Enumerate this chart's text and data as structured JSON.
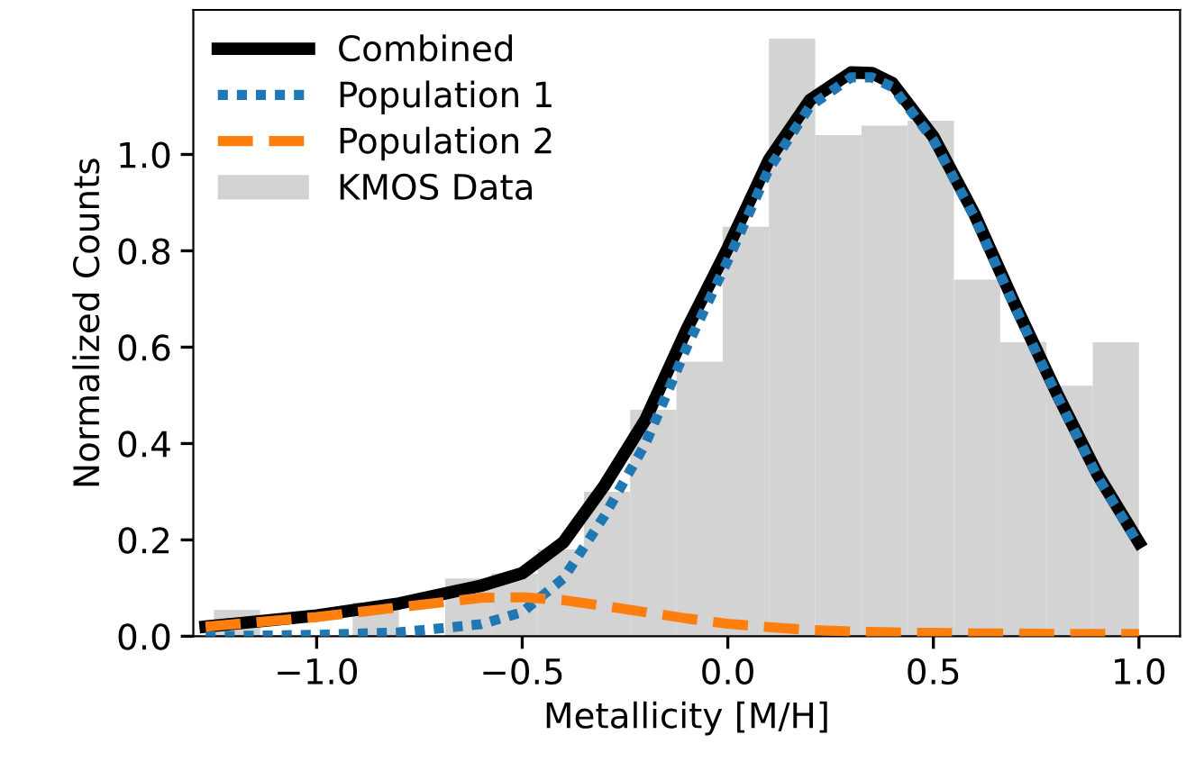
{
  "chart_data": {
    "type": "histogram",
    "xlabel": "Metallicity [M/H]",
    "ylabel": "Normalized Counts",
    "xlim": [
      -1.3,
      1.1
    ],
    "ylim": [
      0,
      1.3
    ],
    "xticks": [
      {
        "value": -1.0,
        "label": "−1.0"
      },
      {
        "value": -0.5,
        "label": "−0.5"
      },
      {
        "value": 0.0,
        "label": "0.0"
      },
      {
        "value": 0.5,
        "label": "0.5"
      },
      {
        "value": 1.0,
        "label": "1.0"
      }
    ],
    "yticks": [
      {
        "value": 0.0,
        "label": "0.0"
      },
      {
        "value": 0.2,
        "label": "0.2"
      },
      {
        "value": 0.4,
        "label": "0.4"
      },
      {
        "value": 0.6,
        "label": "0.6"
      },
      {
        "value": 0.8,
        "label": "0.8"
      },
      {
        "value": 1.0,
        "label": "1.0"
      }
    ],
    "legend": "top left",
    "grid": false,
    "series": [
      {
        "type": "line",
        "name": "Combined",
        "color": "#000000",
        "line_style": "solid",
        "x": [
          -1.27,
          -1.0,
          -0.8,
          -0.6,
          -0.5,
          -0.4,
          -0.3,
          -0.2,
          -0.1,
          0.0,
          0.1,
          0.2,
          0.3,
          0.35,
          0.4,
          0.5,
          0.6,
          0.7,
          0.8,
          0.9,
          1.0
        ],
        "values": [
          0.02,
          0.043,
          0.068,
          0.105,
          0.131,
          0.195,
          0.313,
          0.45,
          0.637,
          0.806,
          0.989,
          1.113,
          1.17,
          1.169,
          1.148,
          1.037,
          0.876,
          0.686,
          0.505,
          0.335,
          0.195
        ]
      },
      {
        "type": "line",
        "name": "Population 1",
        "color": "#1f77b4",
        "line_style": "dotted",
        "x": [
          -1.27,
          -1.0,
          -0.8,
          -0.6,
          -0.5,
          -0.4,
          -0.3,
          -0.2,
          -0.1,
          0.0,
          0.1,
          0.2,
          0.3,
          0.35,
          0.4,
          0.5,
          0.6,
          0.7,
          0.8,
          0.9,
          1.0
        ],
        "values": [
          0.0,
          0.003,
          0.008,
          0.025,
          0.05,
          0.12,
          0.25,
          0.4,
          0.6,
          0.78,
          0.97,
          1.1,
          1.16,
          1.16,
          1.14,
          1.03,
          0.87,
          0.68,
          0.5,
          0.33,
          0.19
        ]
      },
      {
        "type": "line",
        "name": "Population 2",
        "color": "#ff7f0e",
        "line_style": "dashed",
        "x": [
          -1.27,
          -1.0,
          -0.8,
          -0.6,
          -0.5,
          -0.4,
          -0.3,
          -0.2,
          -0.1,
          0.0,
          0.1,
          0.2,
          0.3,
          0.35,
          0.4,
          0.5,
          0.6,
          0.7,
          0.8,
          0.9,
          1.0
        ],
        "values": [
          0.02,
          0.04,
          0.06,
          0.08,
          0.081,
          0.075,
          0.063,
          0.05,
          0.037,
          0.026,
          0.019,
          0.013,
          0.01,
          0.009,
          0.008,
          0.007,
          0.006,
          0.006,
          0.005,
          0.005,
          0.005
        ]
      },
      {
        "name": "KMOS Data",
        "color": "#d3d3d3",
        "bins": [
          -1.25,
          -1.1375,
          -1.025,
          -0.9125,
          -0.8,
          -0.6875,
          -0.575,
          -0.4625,
          -0.35,
          -0.2375,
          -0.125,
          -0.0125,
          0.1,
          0.2125,
          0.325,
          0.4375,
          0.55,
          0.6625,
          0.775,
          0.8875,
          1.0
        ],
        "values": [
          0.055,
          null,
          null,
          0.07,
          null,
          0.12,
          0.13,
          0.18,
          0.3,
          0.47,
          0.57,
          0.85,
          1.24,
          1.04,
          1.06,
          1.07,
          0.74,
          0.61,
          0.52,
          0.61
        ]
      }
    ]
  }
}
